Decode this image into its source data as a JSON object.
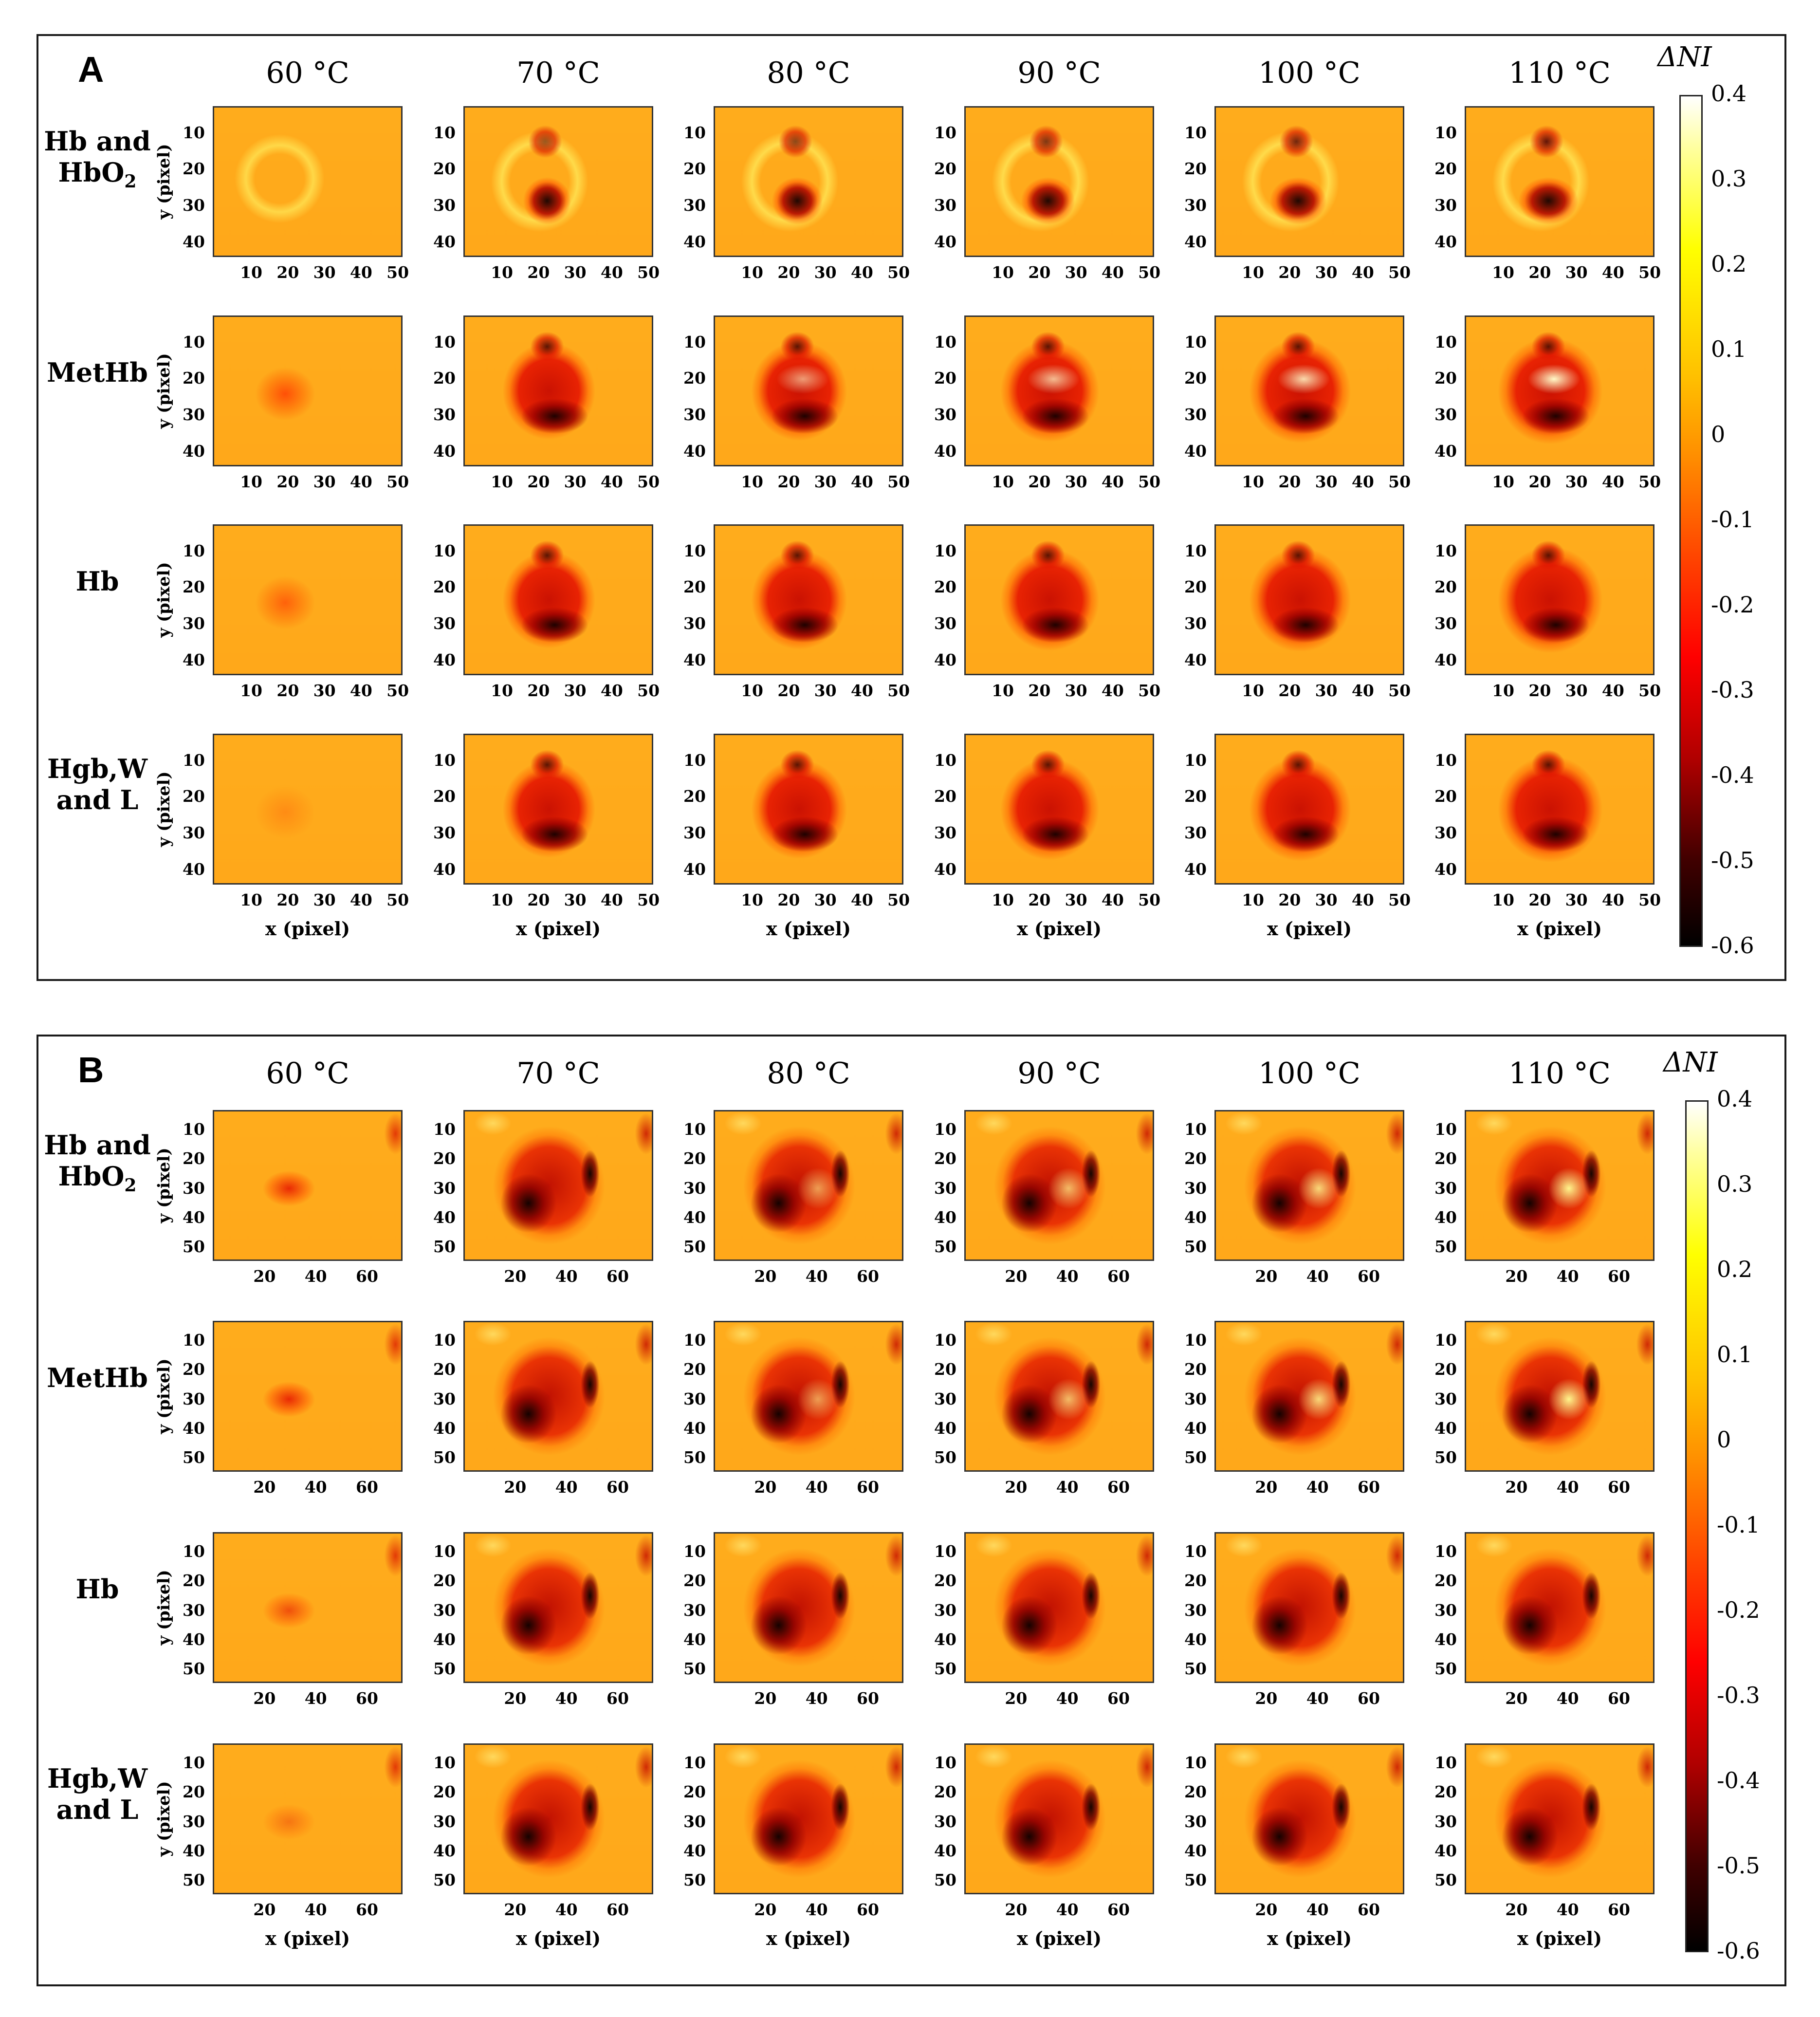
{
  "temperatures": [
    "60 °C",
    "70 °C",
    "80 °C",
    "90 °C",
    "100 °C",
    "110 °C"
  ],
  "row_labels": [
    {
      "line1": "Hb and",
      "line2": "HbO",
      "sub": "2"
    },
    {
      "line1": "MetHb",
      "line2": "",
      "sub": ""
    },
    {
      "line1": "Hb",
      "line2": "",
      "sub": ""
    },
    {
      "line1": "Hgb,W",
      "line2": "and L",
      "sub": ""
    }
  ],
  "y_axis_label": "y (pixel)",
  "x_axis_label": "x (pixel)",
  "colorbar": {
    "title": "ΔNI",
    "ticks": [
      "0.4",
      "0.3",
      "0.2",
      "0.1",
      "0",
      "-0.1",
      "-0.2",
      "-0.3",
      "-0.4",
      "-0.5",
      "-0.6"
    ],
    "range": [
      -0.6,
      0.4
    ]
  },
  "panels": [
    {
      "letter": "A",
      "x_ticks": [
        "10",
        "20",
        "30",
        "40",
        "50"
      ],
      "y_ticks": [
        "10",
        "20",
        "30",
        "40"
      ]
    },
    {
      "letter": "B",
      "x_ticks": [
        "20",
        "40",
        "60"
      ],
      "y_ticks": [
        "10",
        "20",
        "30",
        "40",
        "50"
      ]
    }
  ],
  "chart_data": [
    {
      "type": "heatmap",
      "title": "A",
      "columns": [
        "60 °C",
        "70 °C",
        "80 °C",
        "90 °C",
        "100 °C",
        "110 °C"
      ],
      "rows": [
        "Hb and HbO2",
        "MetHb",
        "Hb",
        "Hgb,W and L"
      ],
      "xlabel": "x (pixel)",
      "ylabel": "y (pixel)",
      "x_range": [
        1,
        52
      ],
      "y_range": [
        1,
        42
      ],
      "color_label": "ΔNI",
      "color_range": [
        -0.6,
        0.4
      ]
    },
    {
      "type": "heatmap",
      "title": "B",
      "columns": [
        "60 °C",
        "70 °C",
        "80 °C",
        "90 °C",
        "100 °C",
        "110 °C"
      ],
      "rows": [
        "Hb and HbO2",
        "MetHb",
        "Hb",
        "Hgb,W and L"
      ],
      "xlabel": "x (pixel)",
      "ylabel": "y (pixel)",
      "x_range": [
        1,
        74
      ],
      "y_range": [
        1,
        55
      ],
      "color_label": "ΔNI",
      "color_range": [
        -0.6,
        0.4
      ]
    }
  ]
}
